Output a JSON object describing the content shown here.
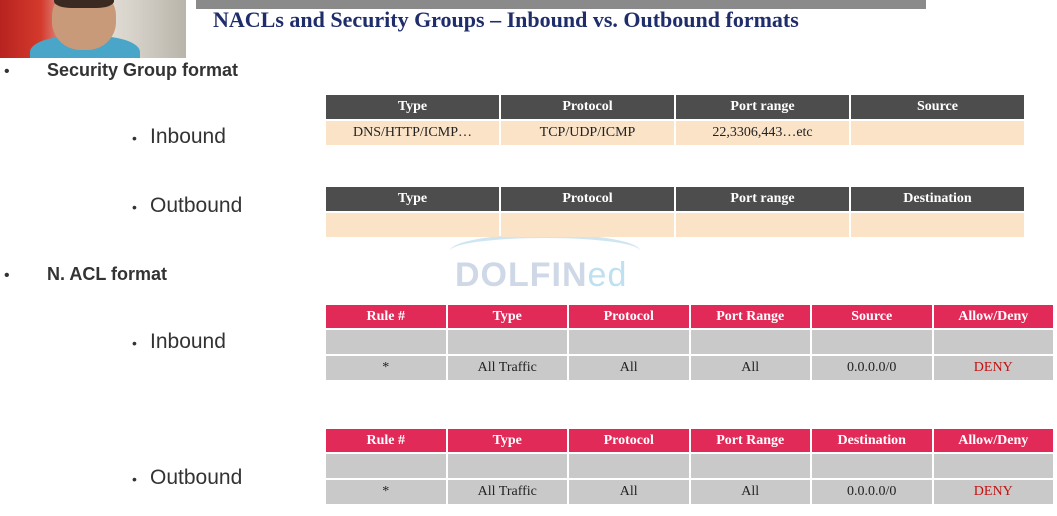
{
  "title": "NACLs and Security Groups – Inbound vs. Outbound formats",
  "sections": {
    "sg_heading": "Security Group format",
    "nacl_heading": "N. ACL format",
    "sg_inbound": "Inbound",
    "sg_outbound": "Outbound",
    "nacl_inbound": "Inbound",
    "nacl_outbound": "Outbound"
  },
  "bullets": {
    "main": "•",
    "sub": "•"
  },
  "watermark": {
    "main": "DOLFIN",
    "suffix": "ed"
  },
  "sg_inbound_table": {
    "headers": [
      "Type",
      "Protocol",
      "Port range",
      "Source"
    ],
    "row": [
      "DNS/HTTP/ICMP…",
      "TCP/UDP/ICMP",
      "22,3306,443…etc",
      ""
    ]
  },
  "sg_outbound_table": {
    "headers": [
      "Type",
      "Protocol",
      "Port range",
      "Destination"
    ],
    "row": [
      "",
      "",
      "",
      ""
    ]
  },
  "nacl_inbound_table": {
    "headers": [
      "Rule #",
      "Type",
      "Protocol",
      "Port Range",
      "Source",
      "Allow/Deny"
    ],
    "rows": [
      [
        "",
        "",
        "",
        "",
        "",
        ""
      ],
      [
        "*",
        "All Traffic",
        "All",
        "All",
        "0.0.0.0/0",
        "DENY"
      ]
    ]
  },
  "nacl_outbound_table": {
    "headers": [
      "Rule #",
      "Type",
      "Protocol",
      "Port Range",
      "Destination",
      "Allow/Deny"
    ],
    "rows": [
      [
        "",
        "",
        "",
        "",
        "",
        ""
      ],
      [
        "*",
        "All Traffic",
        "All",
        "All",
        "0.0.0.0/0",
        "DENY"
      ]
    ]
  },
  "colors": {
    "title": "#1f2d6b",
    "sg_header": "#4d4d4d",
    "sg_cell": "#fbe3c8",
    "nacl_header": "#e22a58",
    "nacl_cell": "#c9c9c9",
    "deny": "#c41010"
  }
}
